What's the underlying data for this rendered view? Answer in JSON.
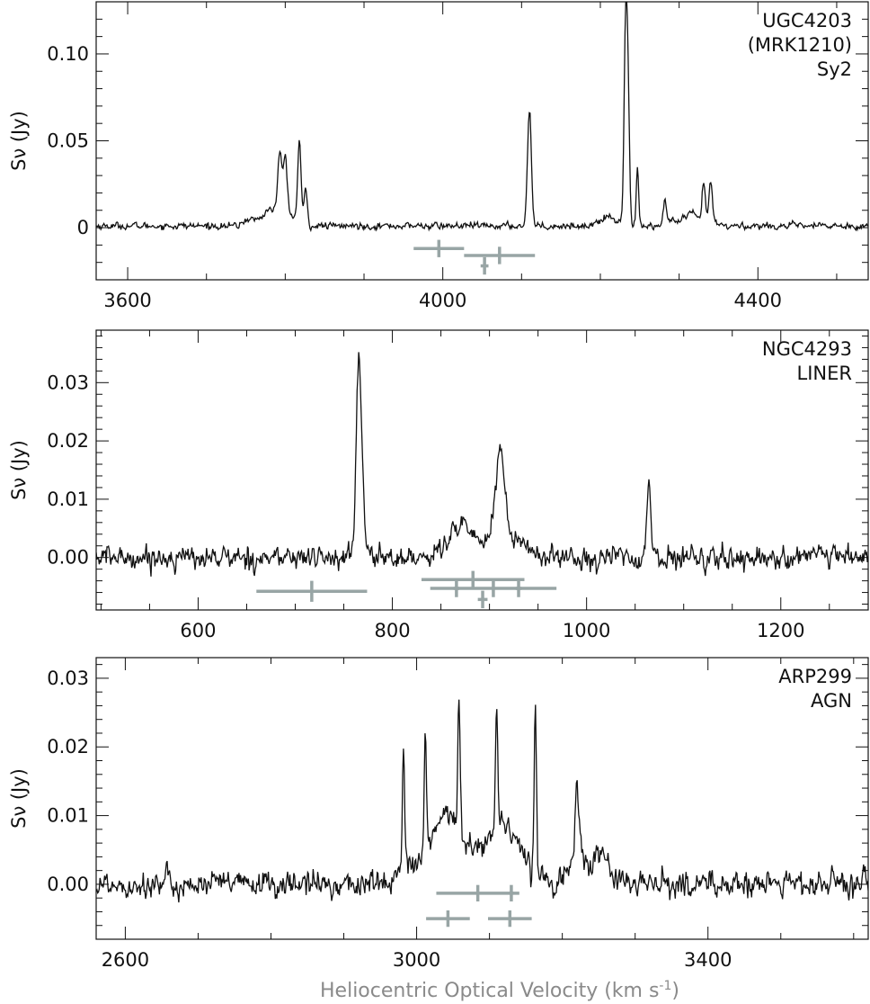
{
  "figure": {
    "xlabel_main": "Heliocentric Optical Velocity (km s",
    "xlabel_sup": "-1",
    "xlabel_end": ")",
    "colors": {
      "spectrum": "#111111",
      "markers": "#98a5a5",
      "axis": "#111111",
      "xlabel": "#8a8a8a"
    }
  },
  "chart_data": [
    {
      "type": "line",
      "annotations": [
        "UGC4203",
        "(MRK1210)",
        "Sy2"
      ],
      "ylabel": "Sν (Jy)",
      "xlim": [
        3560,
        4540
      ],
      "ylim": [
        -0.03,
        0.13
      ],
      "xticks": [
        3600,
        4000,
        4400
      ],
      "xtick_labels": [
        "3600",
        "4000",
        "4400"
      ],
      "yticks": [
        0,
        0.05,
        0.1
      ],
      "ytick_labels": [
        "0",
        "0.05",
        "0.10"
      ],
      "noise": 0.0016,
      "baseline": 0.001,
      "broad": [
        {
          "lo": 3740,
          "hi": 3830,
          "amp": 0.01
        },
        {
          "lo": 4185,
          "hi": 4240,
          "amp": 0.006
        },
        {
          "lo": 4280,
          "hi": 4355,
          "amp": 0.007
        }
      ],
      "peaks": [
        {
          "x": 3793,
          "y": 0.036,
          "w": 2.5
        },
        {
          "x": 3800,
          "y": 0.036,
          "w": 2.5
        },
        {
          "x": 3818,
          "y": 0.046,
          "w": 2
        },
        {
          "x": 3826,
          "y": 0.02,
          "w": 2
        },
        {
          "x": 4110,
          "y": 0.067,
          "w": 2.5
        },
        {
          "x": 4232,
          "y": 0.101,
          "w": 2
        },
        {
          "x": 4235,
          "y": 0.07,
          "w": 2
        },
        {
          "x": 4247,
          "y": 0.033,
          "w": 1.5
        },
        {
          "x": 4282,
          "y": 0.015,
          "w": 2
        },
        {
          "x": 4331,
          "y": 0.022,
          "w": 2
        },
        {
          "x": 4340,
          "y": 0.021,
          "w": 2
        }
      ],
      "markers": [
        {
          "x": 3995,
          "y": -0.012,
          "xerr": 32,
          "yerr": 0.005
        },
        {
          "x": 4072,
          "y": -0.016,
          "xerr": 45,
          "yerr": 0.005
        },
        {
          "x": 4053,
          "y": -0.022,
          "xerr": 5,
          "yerr": 0.005
        }
      ]
    },
    {
      "type": "line",
      "annotations": [
        "NGC4293",
        "LINER"
      ],
      "ylabel": "Sν (Jy)",
      "xlim": [
        495,
        1290
      ],
      "ylim": [
        -0.009,
        0.039
      ],
      "xticks": [
        600,
        800,
        1000,
        1200
      ],
      "xtick_labels": [
        "600",
        "800",
        "1000",
        "1200"
      ],
      "yticks": [
        0.0,
        0.01,
        0.02,
        0.03
      ],
      "ytick_labels": [
        "0.00",
        "0.01",
        "0.02",
        "0.03"
      ],
      "noise": 0.0016,
      "baseline": 0.0,
      "broad": [
        {
          "lo": 830,
          "hi": 960,
          "amp": 0.004
        },
        {
          "lo": 850,
          "hi": 880,
          "amp": 0.004
        }
      ],
      "peaks": [
        {
          "x": 765,
          "y": 0.029,
          "w": 2.5
        },
        {
          "x": 769,
          "y": 0.01,
          "w": 3
        },
        {
          "x": 911,
          "y": 0.016,
          "w": 5
        },
        {
          "x": 1064,
          "y": 0.012,
          "w": 2
        }
      ],
      "markers": [
        {
          "x": 717,
          "y": -0.0058,
          "xerr": 57,
          "yerr": 0.0018
        },
        {
          "x": 883,
          "y": -0.0038,
          "xerr": 53,
          "yerr": 0.0015
        },
        {
          "x": 904,
          "y": -0.0053,
          "xerr": 65,
          "yerr": 0.0015
        },
        {
          "x": 866,
          "y": -0.0053,
          "xerr": 3,
          "yerr": 0.0015
        },
        {
          "x": 930,
          "y": -0.0053,
          "xerr": 3,
          "yerr": 0.0015
        },
        {
          "x": 893,
          "y": -0.0072,
          "xerr": 5,
          "yerr": 0.0015
        }
      ]
    },
    {
      "type": "line",
      "annotations": [
        "ARP299",
        "AGN"
      ],
      "ylabel": "Sν (Jy)",
      "xlim": [
        2560,
        3620
      ],
      "ylim": [
        -0.008,
        0.033
      ],
      "xticks": [
        2600,
        3000,
        3400
      ],
      "xtick_labels": [
        "2600",
        "3000",
        "3400"
      ],
      "yticks": [
        0.0,
        0.01,
        0.02,
        0.03
      ],
      "ytick_labels": [
        "0.00",
        "0.01",
        "0.02",
        "0.03"
      ],
      "noise": 0.0016,
      "baseline": 0.0,
      "broad": [
        {
          "lo": 2960,
          "hi": 3190,
          "amp": 0.011
        },
        {
          "lo": 3190,
          "hi": 3280,
          "amp": 0.006
        }
      ],
      "peaks": [
        {
          "x": 2982,
          "y": 0.018,
          "w": 1.5
        },
        {
          "x": 3012,
          "y": 0.018,
          "w": 1.5
        },
        {
          "x": 3058,
          "y": 0.019,
          "w": 1.5
        },
        {
          "x": 3110,
          "y": 0.017,
          "w": 1.5
        },
        {
          "x": 3163,
          "y": 0.024,
          "w": 1.5
        },
        {
          "x": 3220,
          "y": 0.01,
          "w": 2
        }
      ],
      "markers": [
        {
          "x": 3084,
          "y": -0.0013,
          "xerr": 57,
          "yerr": 0.0012
        },
        {
          "x": 3130,
          "y": -0.0013,
          "xerr": 3,
          "yerr": 0.0012
        },
        {
          "x": 3043,
          "y": -0.005,
          "xerr": 30,
          "yerr": 0.0012
        },
        {
          "x": 3128,
          "y": -0.005,
          "xerr": 30,
          "yerr": 0.0012
        }
      ]
    }
  ]
}
